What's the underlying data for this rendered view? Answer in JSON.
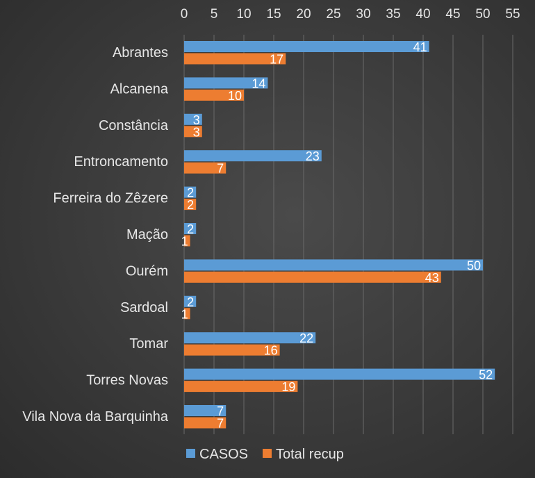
{
  "chart_data": {
    "type": "bar",
    "orientation": "horizontal",
    "categories": [
      "Abrantes",
      "Alcanena",
      "Constância",
      "Entroncamento",
      "Ferreira do Zêzere",
      "Mação",
      "Ourém",
      "Sardoal",
      "Tomar",
      "Torres Novas",
      "Vila Nova da Barquinha"
    ],
    "series": [
      {
        "name": "CASOS",
        "color": "#5b9bd5",
        "values": [
          41,
          14,
          3,
          23,
          2,
          2,
          50,
          2,
          22,
          52,
          7
        ]
      },
      {
        "name": "Total recup",
        "color": "#ed7d31",
        "values": [
          17,
          10,
          3,
          7,
          2,
          1,
          43,
          1,
          16,
          19,
          7
        ]
      }
    ],
    "xlim": [
      0,
      55
    ],
    "x_ticks": [
      0,
      5,
      10,
      15,
      20,
      25,
      30,
      35,
      40,
      45,
      50,
      55
    ],
    "x_axis_position": "top",
    "grid": true,
    "legend": "bottom",
    "data_labels": true
  }
}
